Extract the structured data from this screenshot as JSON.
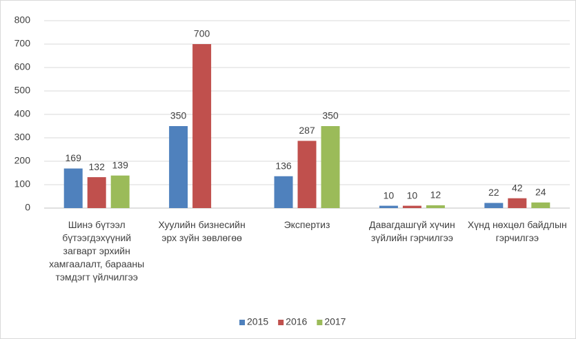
{
  "chart_data": {
    "type": "bar",
    "categories": [
      "Шинэ бүтээл бүтээгдэхүүний загварт эрхийн хамгаалалт, барааны тэмдэгт үйлчилгээ",
      "Хуулийн бизнесийн эрх зүйн зөвлөгөө",
      "Экспертиз",
      "Давагдашгүй хүчин зүйлийн гэрчилгээ",
      "Хүнд нөхцөл байдлын гэрчилгээ"
    ],
    "series": [
      {
        "name": "2015",
        "color": "#4f81bd",
        "values": [
          169,
          350,
          136,
          10,
          22
        ]
      },
      {
        "name": "2016",
        "color": "#c0504d",
        "values": [
          132,
          700,
          287,
          10,
          42
        ]
      },
      {
        "name": "2017",
        "color": "#9bbb59",
        "values": [
          139,
          null,
          350,
          12,
          24
        ]
      }
    ],
    "ylim": [
      0,
      800
    ],
    "yticks": [
      0,
      100,
      200,
      300,
      400,
      500,
      600,
      700,
      800
    ],
    "grid": true,
    "legend": "bottom"
  }
}
